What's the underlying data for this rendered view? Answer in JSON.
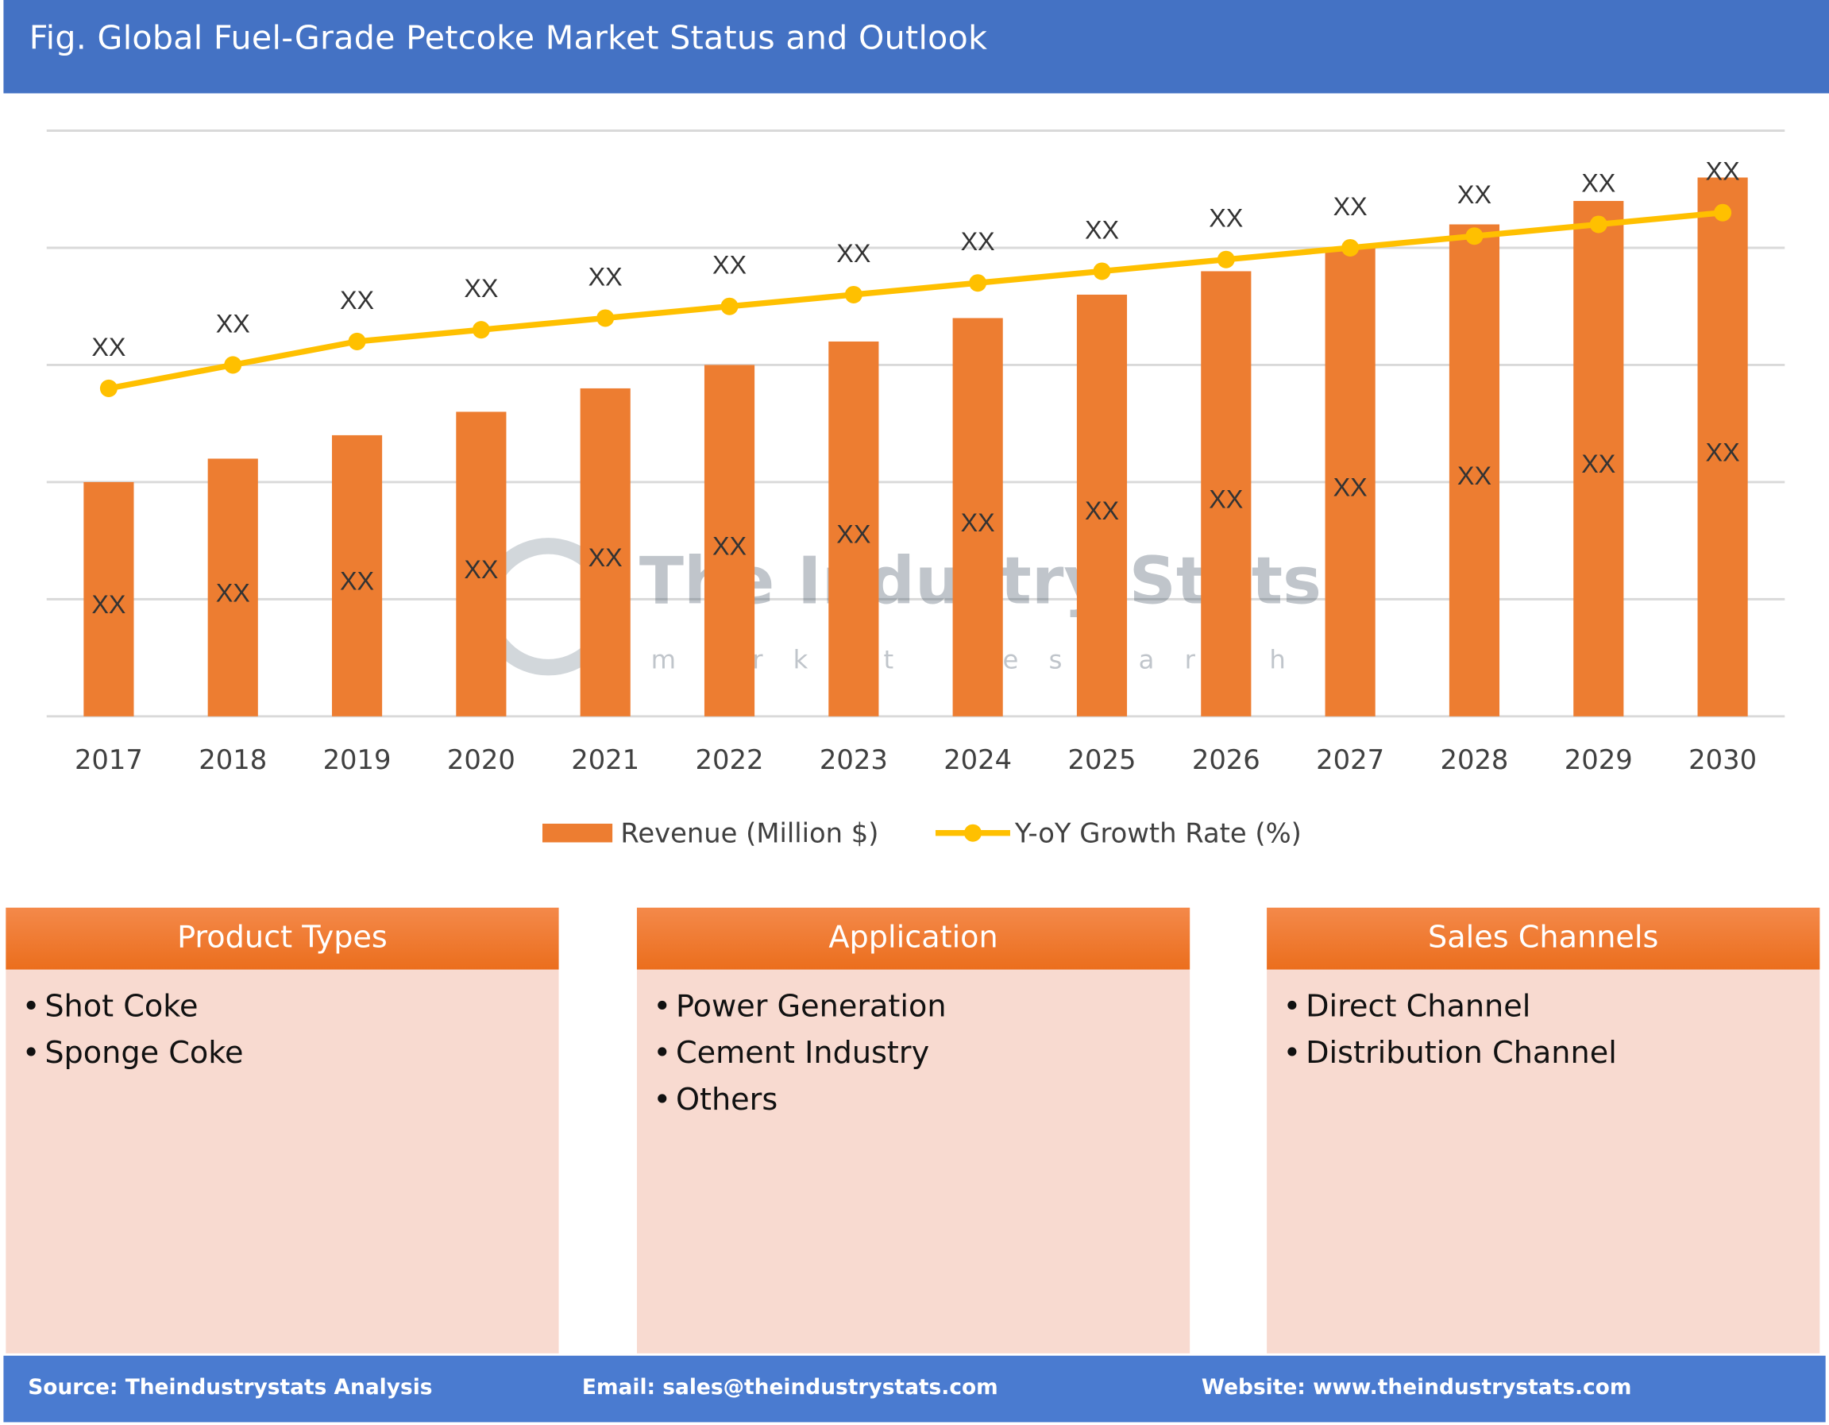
{
  "title": "Fig. Global Fuel-Grade Petcoke Market Status and Outlook",
  "chart_data": {
    "type": "bar",
    "categories": [
      "2017",
      "2018",
      "2019",
      "2020",
      "2021",
      "2022",
      "2023",
      "2024",
      "2025",
      "2026",
      "2027",
      "2028",
      "2029",
      "2030"
    ],
    "series": [
      {
        "name": "Revenue (Million $)",
        "type": "bar",
        "color": "#ED7D31",
        "values": [
          2.0,
          2.2,
          2.4,
          2.6,
          2.8,
          3.0,
          3.2,
          3.4,
          3.6,
          3.8,
          4.0,
          4.2,
          4.4,
          4.6
        ],
        "data_labels": [
          "XX",
          "XX",
          "XX",
          "XX",
          "XX",
          "XX",
          "XX",
          "XX",
          "XX",
          "XX",
          "XX",
          "XX",
          "XX",
          "XX"
        ]
      },
      {
        "name": "Y-oY Growth Rate (%)",
        "type": "line",
        "color": "#FFC000",
        "values": [
          2.8,
          3.0,
          3.2,
          3.3,
          3.4,
          3.5,
          3.6,
          3.7,
          3.8,
          3.9,
          4.0,
          4.1,
          4.2,
          4.3
        ],
        "data_labels": [
          "XX",
          "XX",
          "XX",
          "XX",
          "XX",
          "XX",
          "XX",
          "XX",
          "XX",
          "XX",
          "XX",
          "XX",
          "XX",
          "XX"
        ]
      }
    ],
    "ylim": [
      0,
      5
    ],
    "y_tick_labels_shown": false,
    "grid": true,
    "legend": "bottom-center"
  },
  "watermark": {
    "name": "The Industry Stats",
    "tagline": "market research"
  },
  "panels": [
    {
      "title": "Product Types",
      "items": [
        "Shot Coke",
        "Sponge Coke"
      ]
    },
    {
      "title": "Application",
      "items": [
        "Power Generation",
        "Cement Industry",
        "Others"
      ]
    },
    {
      "title": "Sales Channels",
      "items": [
        "Direct Channel",
        "Distribution Channel"
      ]
    }
  ],
  "footer": {
    "source": "Source: Theindustrystats Analysis",
    "email": "Email: sales@theindustrystats.com",
    "website": "Website: www.theindustrystats.com"
  }
}
